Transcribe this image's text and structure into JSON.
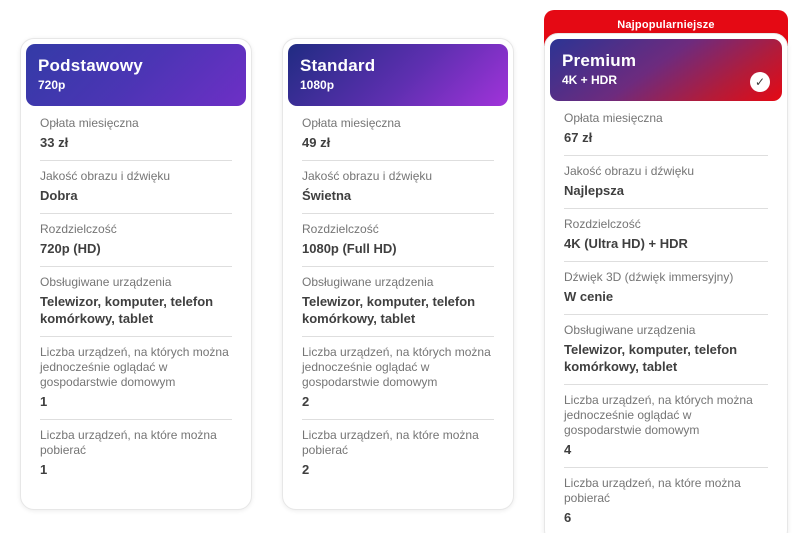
{
  "colors": {
    "badge_red": "#e50914",
    "label_gray": "#757575",
    "value_dark": "#3f3f3f",
    "divider": "#dedede",
    "card_border": "#e7e7e7"
  },
  "icons": {
    "selected_check": "✓"
  },
  "plans": [
    {
      "title": "Podstawowy",
      "subtitle": "720p",
      "selected": false,
      "header_background": "linear-gradient(135deg, #333ba6 0%, #4b35b4 50%, #6e2fc6 100%)",
      "rows": [
        {
          "label": "Opłata miesięczna",
          "value": "33 zł"
        },
        {
          "label": "Jakość obrazu i dźwięku",
          "value": "Dobra"
        },
        {
          "label": "Rozdzielczość",
          "value": "720p (HD)"
        },
        {
          "label": "Obsługiwane urządzenia",
          "value": "Telewizor, komputer, telefon komórkowy, tablet"
        },
        {
          "label": "Liczba urządzeń, na których można jednocześnie oglądać w gospodarstwie domowym",
          "value": "1"
        },
        {
          "label": "Liczba urządzeń, na które można pobierać",
          "value": "1"
        }
      ]
    },
    {
      "title": "Standard",
      "subtitle": "1080p",
      "selected": false,
      "header_background": "linear-gradient(135deg, #202c82 0%, #5e2fb0 55%, #a133da 100%)",
      "rows": [
        {
          "label": "Opłata miesięczna",
          "value": "49 zł"
        },
        {
          "label": "Jakość obrazu i dźwięku",
          "value": "Świetna"
        },
        {
          "label": "Rozdzielczość",
          "value": "1080p (Full HD)"
        },
        {
          "label": "Obsługiwane urządzenia",
          "value": "Telewizor, komputer, telefon komórkowy, tablet"
        },
        {
          "label": "Liczba urządzeń, na których można jednocześnie oglądać w gospodarstwie domowym",
          "value": "2"
        },
        {
          "label": "Liczba urządzeń, na które można pobierać",
          "value": "2"
        }
      ]
    },
    {
      "title": "Premium",
      "subtitle": "4K + HDR",
      "badge": "Najpopularniejsze",
      "selected": true,
      "header_background": "linear-gradient(145deg, #2c3494 0%, #6d2b7e 45%, #b11c3b 75%, #e50914 100%)",
      "rows": [
        {
          "label": "Opłata miesięczna",
          "value": "67 zł"
        },
        {
          "label": "Jakość obrazu i dźwięku",
          "value": "Najlepsza"
        },
        {
          "label": "Rozdzielczość",
          "value": "4K (Ultra HD) + HDR"
        },
        {
          "label": "Dźwięk 3D (dźwięk immersyjny)",
          "value": "W cenie"
        },
        {
          "label": "Obsługiwane urządzenia",
          "value": "Telewizor, komputer, telefon komórkowy, tablet"
        },
        {
          "label": "Liczba urządzeń, na których można jednocześnie oglądać w gospodarstwie domowym",
          "value": "4"
        },
        {
          "label": "Liczba urządzeń, na które można pobierać",
          "value": "6"
        }
      ]
    }
  ]
}
